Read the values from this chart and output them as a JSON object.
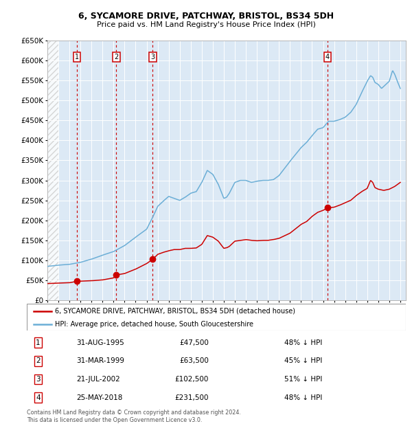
{
  "title1": "6, SYCAMORE DRIVE, PATCHWAY, BRISTOL, BS34 5DH",
  "title2": "Price paid vs. HM Land Registry's House Price Index (HPI)",
  "sales": [
    {
      "date_dec": 1995.667,
      "price": 47500,
      "label": "1"
    },
    {
      "date_dec": 1999.25,
      "price": 63500,
      "label": "2"
    },
    {
      "date_dec": 2002.55,
      "price": 102500,
      "label": "3"
    },
    {
      "date_dec": 2018.4,
      "price": 231500,
      "label": "4"
    }
  ],
  "sale_info": [
    {
      "num": "1",
      "date": "31-AUG-1995",
      "price": "£47,500",
      "pct": "48% ↓ HPI"
    },
    {
      "num": "2",
      "date": "31-MAR-1999",
      "price": "£63,500",
      "pct": "45% ↓ HPI"
    },
    {
      "num": "3",
      "date": "21-JUL-2002",
      "price": "£102,500",
      "pct": "51% ↓ HPI"
    },
    {
      "num": "4",
      "date": "25-MAY-2018",
      "price": "£231,500",
      "pct": "48% ↓ HPI"
    }
  ],
  "legend1": "6, SYCAMORE DRIVE, PATCHWAY, BRISTOL, BS34 5DH (detached house)",
  "legend2": "HPI: Average price, detached house, South Gloucestershire",
  "footer": "Contains HM Land Registry data © Crown copyright and database right 2024.\nThis data is licensed under the Open Government Licence v3.0.",
  "sale_color": "#cc0000",
  "hpi_color": "#6baed6",
  "bg_color": "#dce9f5",
  "grid_color": "#ffffff",
  "hatch_color": "#bbbbbb",
  "ylim": [
    0,
    650000
  ],
  "xlim_start": 1993.0,
  "xlim_end": 2025.5,
  "ytick_step": 50000,
  "hpi_key_points": [
    [
      1993.0,
      85000
    ],
    [
      1994.0,
      88000
    ],
    [
      1995.0,
      90000
    ],
    [
      1996.0,
      95000
    ],
    [
      1997.0,
      103000
    ],
    [
      1998.0,
      113000
    ],
    [
      1999.0,
      122000
    ],
    [
      2000.0,
      137000
    ],
    [
      2001.0,
      158000
    ],
    [
      2002.0,
      178000
    ],
    [
      2002.5,
      205000
    ],
    [
      2003.0,
      235000
    ],
    [
      2003.5,
      248000
    ],
    [
      2004.0,
      260000
    ],
    [
      2004.5,
      255000
    ],
    [
      2005.0,
      250000
    ],
    [
      2005.5,
      258000
    ],
    [
      2006.0,
      268000
    ],
    [
      2006.5,
      272000
    ],
    [
      2007.0,
      295000
    ],
    [
      2007.5,
      325000
    ],
    [
      2008.0,
      315000
    ],
    [
      2008.5,
      290000
    ],
    [
      2009.0,
      255000
    ],
    [
      2009.25,
      258000
    ],
    [
      2009.5,
      268000
    ],
    [
      2010.0,
      295000
    ],
    [
      2010.5,
      300000
    ],
    [
      2011.0,
      300000
    ],
    [
      2011.5,
      295000
    ],
    [
      2012.0,
      298000
    ],
    [
      2012.5,
      300000
    ],
    [
      2013.0,
      300000
    ],
    [
      2013.5,
      302000
    ],
    [
      2014.0,
      312000
    ],
    [
      2015.0,
      348000
    ],
    [
      2016.0,
      382000
    ],
    [
      2016.5,
      395000
    ],
    [
      2017.0,
      412000
    ],
    [
      2017.5,
      428000
    ],
    [
      2018.0,
      432000
    ],
    [
      2018.5,
      448000
    ],
    [
      2019.0,
      448000
    ],
    [
      2019.5,
      452000
    ],
    [
      2020.0,
      458000
    ],
    [
      2020.5,
      470000
    ],
    [
      2021.0,
      490000
    ],
    [
      2021.5,
      520000
    ],
    [
      2022.0,
      548000
    ],
    [
      2022.3,
      562000
    ],
    [
      2022.5,
      558000
    ],
    [
      2022.7,
      545000
    ],
    [
      2023.0,
      540000
    ],
    [
      2023.3,
      530000
    ],
    [
      2023.5,
      535000
    ],
    [
      2023.8,
      543000
    ],
    [
      2024.0,
      548000
    ],
    [
      2024.3,
      575000
    ],
    [
      2024.5,
      565000
    ],
    [
      2024.7,
      550000
    ],
    [
      2025.0,
      530000
    ]
  ],
  "prop_key_points": [
    [
      1993.0,
      42000
    ],
    [
      1994.0,
      43000
    ],
    [
      1995.0,
      44000
    ],
    [
      1995.667,
      47500
    ],
    [
      1996.0,
      48000
    ],
    [
      1997.0,
      49000
    ],
    [
      1998.0,
      51000
    ],
    [
      1999.0,
      56000
    ],
    [
      1999.25,
      63500
    ],
    [
      2000.0,
      67000
    ],
    [
      2001.0,
      78000
    ],
    [
      2002.0,
      92000
    ],
    [
      2002.55,
      102500
    ],
    [
      2003.0,
      115000
    ],
    [
      2003.5,
      120000
    ],
    [
      2004.0,
      124000
    ],
    [
      2004.5,
      127000
    ],
    [
      2005.0,
      127000
    ],
    [
      2005.5,
      130000
    ],
    [
      2006.0,
      130000
    ],
    [
      2006.5,
      131000
    ],
    [
      2007.0,
      140000
    ],
    [
      2007.5,
      162000
    ],
    [
      2008.0,
      158000
    ],
    [
      2008.5,
      148000
    ],
    [
      2009.0,
      130000
    ],
    [
      2009.3,
      132000
    ],
    [
      2009.5,
      135000
    ],
    [
      2010.0,
      148000
    ],
    [
      2010.5,
      150000
    ],
    [
      2011.0,
      152000
    ],
    [
      2011.5,
      150000
    ],
    [
      2012.0,
      149000
    ],
    [
      2012.5,
      150000
    ],
    [
      2013.0,
      150000
    ],
    [
      2013.5,
      152000
    ],
    [
      2014.0,
      155000
    ],
    [
      2015.0,
      168000
    ],
    [
      2016.0,
      190000
    ],
    [
      2016.5,
      197000
    ],
    [
      2017.0,
      210000
    ],
    [
      2017.5,
      220000
    ],
    [
      2018.0,
      225000
    ],
    [
      2018.4,
      231500
    ],
    [
      2019.0,
      233000
    ],
    [
      2019.5,
      238000
    ],
    [
      2020.0,
      244000
    ],
    [
      2020.5,
      250000
    ],
    [
      2021.0,
      262000
    ],
    [
      2021.5,
      272000
    ],
    [
      2022.0,
      280000
    ],
    [
      2022.3,
      300000
    ],
    [
      2022.5,
      295000
    ],
    [
      2022.7,
      282000
    ],
    [
      2023.0,
      278000
    ],
    [
      2023.5,
      275000
    ],
    [
      2024.0,
      278000
    ],
    [
      2024.5,
      285000
    ],
    [
      2025.0,
      295000
    ]
  ]
}
